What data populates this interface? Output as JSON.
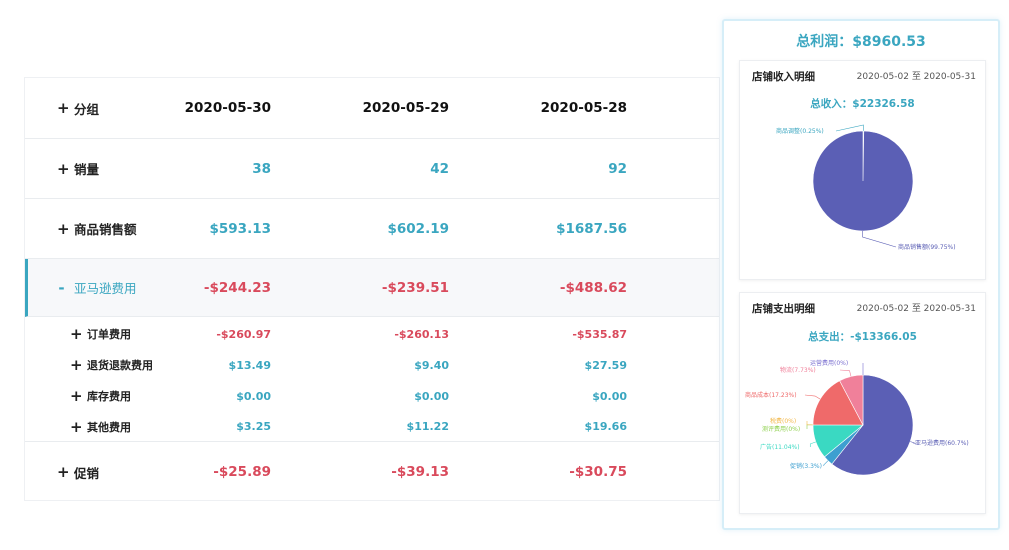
{
  "table": {
    "header": {
      "label": "分组",
      "sign": "+",
      "dates": [
        "2020-05-30",
        "2020-05-29",
        "2020-05-28"
      ]
    },
    "rows": [
      {
        "label": "销量",
        "sign": "+",
        "values": [
          "38",
          "42",
          "92"
        ]
      },
      {
        "label": "商品销售额",
        "sign": "+",
        "values": [
          "$593.13",
          "$602.19",
          "$1687.56"
        ]
      },
      {
        "label": "亚马逊费用",
        "sign": "-",
        "values": [
          "-$244.23",
          "-$239.51",
          "-$488.62"
        ]
      },
      {
        "label": "订单费用",
        "sign": "+",
        "values": [
          "-$260.97",
          "-$260.13",
          "-$535.87"
        ]
      },
      {
        "label": "退货退款费用",
        "sign": "+",
        "values": [
          "$13.49",
          "$9.40",
          "$27.59"
        ]
      },
      {
        "label": "库存费用",
        "sign": "+",
        "values": [
          "$0.00",
          "$0.00",
          "$0.00"
        ]
      },
      {
        "label": "其他费用",
        "sign": "+",
        "values": [
          "$3.25",
          "$11.22",
          "$19.66"
        ]
      },
      {
        "label": "促销",
        "sign": "+",
        "values": [
          "-$25.89",
          "-$39.13",
          "-$30.75"
        ]
      }
    ]
  },
  "panel": {
    "profit": "总利润：$8960.53",
    "income": {
      "title": "店铺收入明细",
      "date_range": "2020-05-02 至 2020-05-31",
      "total": "总收入：$22326.58",
      "chart_data": {
        "type": "pie",
        "slices": [
          {
            "name": "商品调整(0.25%)",
            "value": 0.25,
            "color": "#3aa6c0"
          },
          {
            "name": "商品销售额(99.75%)",
            "value": 99.75,
            "color": "#5b5fb5"
          }
        ]
      }
    },
    "expense": {
      "title": "店铺支出明细",
      "date_range": "2020-05-02 至 2020-05-31",
      "total": "总支出：-$13366.05",
      "chart_data": {
        "type": "pie",
        "slices": [
          {
            "name": "亚马逊费用(60.7%)",
            "value": 60.7,
            "color": "#5b5fb5"
          },
          {
            "name": "促销(3.3%)",
            "value": 3.3,
            "color": "#3d9fd0"
          },
          {
            "name": "广告(11.04%)",
            "value": 11.04,
            "color": "#3ad9c2"
          },
          {
            "name": "测评费用(0%)",
            "value": 0,
            "color": "#8fd14f"
          },
          {
            "name": "税费(0%)",
            "value": 0,
            "color": "#f2b84b"
          },
          {
            "name": "商品成本(17.23%)",
            "value": 17.23,
            "color": "#ef6a6a"
          },
          {
            "name": "物流(7.73%)",
            "value": 7.73,
            "color": "#f0809a"
          },
          {
            "name": "运营费用(0%)",
            "value": 0,
            "color": "#7a6fd0"
          }
        ]
      }
    }
  }
}
